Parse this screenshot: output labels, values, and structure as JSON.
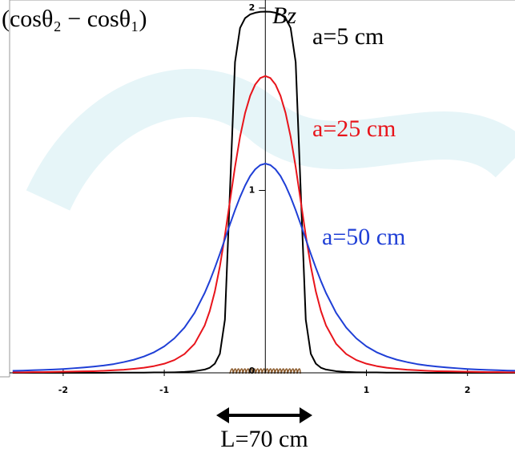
{
  "chart_data": {
    "type": "line",
    "y_label": "(cosθ₂ − cosθ₁)",
    "axis_symbol": "Bz",
    "annotation": "L=70 cm",
    "x": [
      -2.5,
      -2.4,
      -2.3,
      -2.2,
      -2.1,
      -2,
      -1.9,
      -1.8,
      -1.7,
      -1.6,
      -1.5,
      -1.4,
      -1.3,
      -1.2,
      -1.1,
      -1,
      -0.9,
      -0.8,
      -0.7,
      -0.6,
      -0.55,
      -0.5,
      -0.45,
      -0.4,
      -0.35,
      -0.3,
      -0.25,
      -0.2,
      -0.15,
      -0.1,
      -0.05,
      0,
      0.05,
      0.1,
      0.15,
      0.2,
      0.25,
      0.3,
      0.35,
      0.4,
      0.45,
      0.5,
      0.55,
      0.6,
      0.7,
      0.8,
      0.9,
      1,
      1.1,
      1.2,
      1.3,
      1.4,
      1.5,
      1.6,
      1.7,
      1.8,
      1.9,
      2,
      2.1,
      2.2,
      2.3,
      2.4,
      2.5
    ],
    "series": [
      {
        "name": "a=5 cm",
        "color": "#000000",
        "values": [
          0,
          0,
          0,
          0,
          0,
          0,
          0,
          0,
          0,
          0,
          0.001,
          0.001,
          0.001,
          0.001,
          0.002,
          0.002,
          0.003,
          0.005,
          0.009,
          0.018,
          0.028,
          0.05,
          0.104,
          0.291,
          0.997,
          1.704,
          1.891,
          1.945,
          1.965,
          1.974,
          1.979,
          1.98,
          1.979,
          1.974,
          1.965,
          1.945,
          1.891,
          1.704,
          0.997,
          0.291,
          0.104,
          0.05,
          0.028,
          0.018,
          0.009,
          0.005,
          0.003,
          0.002,
          0.002,
          0.001,
          0.001,
          0.001,
          0.001,
          0,
          0,
          0,
          0,
          0,
          0,
          0,
          0,
          0,
          0
        ]
      },
      {
        "name": "a=25 cm",
        "color": "#e8141b",
        "values": [
          0.003,
          0.003,
          0.004,
          0.004,
          0.005,
          0.006,
          0.007,
          0.008,
          0.009,
          0.011,
          0.014,
          0.017,
          0.022,
          0.028,
          0.037,
          0.05,
          0.07,
          0.103,
          0.159,
          0.26,
          0.339,
          0.445,
          0.583,
          0.753,
          0.942,
          1.129,
          1.295,
          1.425,
          1.519,
          1.581,
          1.616,
          1.627,
          1.616,
          1.581,
          1.519,
          1.425,
          1.295,
          1.129,
          0.942,
          0.753,
          0.583,
          0.445,
          0.339,
          0.26,
          0.159,
          0.103,
          0.07,
          0.05,
          0.037,
          0.028,
          0.022,
          0.017,
          0.014,
          0.011,
          0.009,
          0.008,
          0.007,
          0.006,
          0.005,
          0.004,
          0.004,
          0.003,
          0.003
        ]
      },
      {
        "name": "a=50 cm",
        "color": "#1f3fd6",
        "values": [
          0.011,
          0.012,
          0.014,
          0.016,
          0.018,
          0.021,
          0.025,
          0.029,
          0.034,
          0.04,
          0.048,
          0.059,
          0.072,
          0.09,
          0.113,
          0.145,
          0.189,
          0.248,
          0.329,
          0.438,
          0.503,
          0.575,
          0.652,
          0.733,
          0.814,
          0.892,
          0.964,
          1.027,
          1.079,
          1.116,
          1.139,
          1.147,
          1.139,
          1.116,
          1.079,
          1.027,
          0.964,
          0.892,
          0.814,
          0.733,
          0.652,
          0.575,
          0.503,
          0.438,
          0.329,
          0.248,
          0.189,
          0.145,
          0.113,
          0.09,
          0.072,
          0.059,
          0.048,
          0.04,
          0.034,
          0.029,
          0.025,
          0.021,
          0.018,
          0.016,
          0.014,
          0.012,
          0.011
        ]
      }
    ],
    "xlim": [
      -2.53,
      2.47
    ],
    "ylim": [
      0,
      2
    ],
    "xticks": [
      -2,
      -1,
      1,
      2
    ],
    "yticks": [
      0,
      1,
      2
    ],
    "grid": false
  }
}
